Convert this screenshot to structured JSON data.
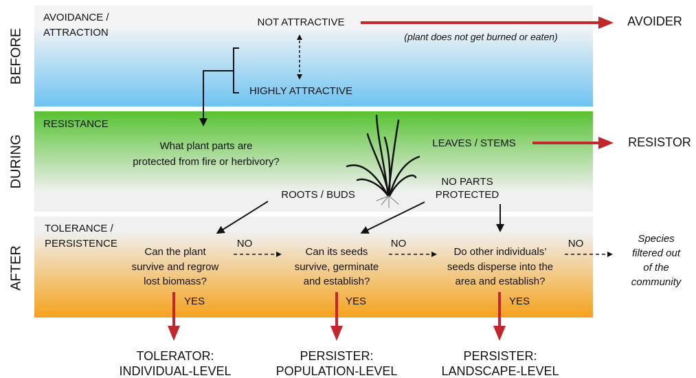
{
  "stages": [
    "BEFORE",
    "DURING",
    "AFTER"
  ],
  "before": {
    "heading": [
      "AVOIDANCE /",
      "ATTRACTION"
    ],
    "not_attractive": "NOT ATTRACTIVE",
    "highly_attractive": "HIGHLY ATTRACTIVE",
    "note": "(plant does not get burned or eaten)",
    "outcome": "AVOIDER"
  },
  "during": {
    "heading": "RESISTANCE",
    "question": [
      "What plant parts are",
      "protected from fire or herbivory?"
    ],
    "leaves_stems": "LEAVES / STEMS",
    "outcome": "RESISTOR",
    "roots_buds": "ROOTS / BUDS",
    "no_parts": [
      "NO PARTS",
      "PROTECTED"
    ]
  },
  "after": {
    "heading": [
      "TOLERANCE /",
      "PERSISTENCE"
    ],
    "questions": [
      {
        "lines": [
          "Can the plant",
          "survive and regrow",
          "lost biomass?"
        ],
        "no": "NO",
        "yes": "YES",
        "outcome": [
          "TOLERATOR:",
          "INDIVIDUAL-LEVEL"
        ]
      },
      {
        "lines": [
          "Can its seeds",
          "survive, germinate",
          "and establish?"
        ],
        "no": "NO",
        "yes": "YES",
        "outcome": [
          "PERSISTER:",
          "POPULATION-LEVEL"
        ]
      },
      {
        "lines": [
          "Do other individuals’",
          "seeds disperse into the",
          "area and establish?"
        ],
        "no": "NO",
        "yes": "YES",
        "outcome": [
          "PERSISTER:",
          "LANDSCAPE-LEVEL"
        ]
      }
    ],
    "filtered": [
      "Species",
      "filtered out",
      "of the",
      "community"
    ]
  }
}
